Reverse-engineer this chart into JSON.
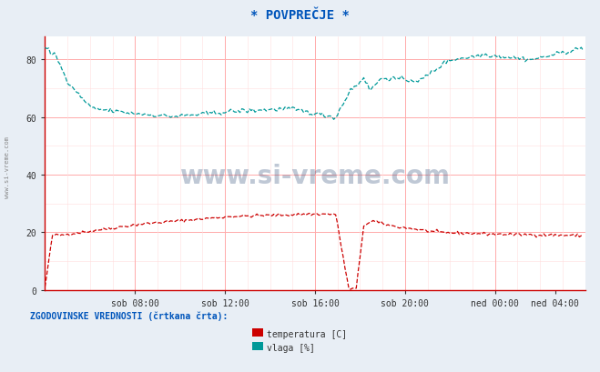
{
  "title": "* POVPREČJE *",
  "bg_color": "#e8eef5",
  "plot_bg_color": "#ffffff",
  "xlabel": "",
  "ylabel_left": "",
  "xlim": [
    0,
    288
  ],
  "ylim": [
    0,
    88
  ],
  "yticks": [
    0,
    20,
    40,
    60,
    80
  ],
  "xtick_labels": [
    "sob 08:00",
    "sob 12:00",
    "sob 16:00",
    "sob 20:00",
    "ned 00:00",
    "ned 04:00"
  ],
  "xtick_positions": [
    48,
    96,
    144,
    192,
    240,
    272
  ],
  "watermark": "www.si-vreme.com",
  "legend_title": "ZGODOVINSKE VREDNOSTI (črtkana črta):",
  "temp_color": "#cc0000",
  "humidity_color": "#009999",
  "title_color": "#0055bb",
  "legend_color": "#0055bb",
  "axis_color": "#cc0000",
  "grid_major_color": "#ffaaaa",
  "grid_minor_color": "#ffdddd",
  "watermark_color": "#1a3a6b",
  "side_text_color": "#888888"
}
